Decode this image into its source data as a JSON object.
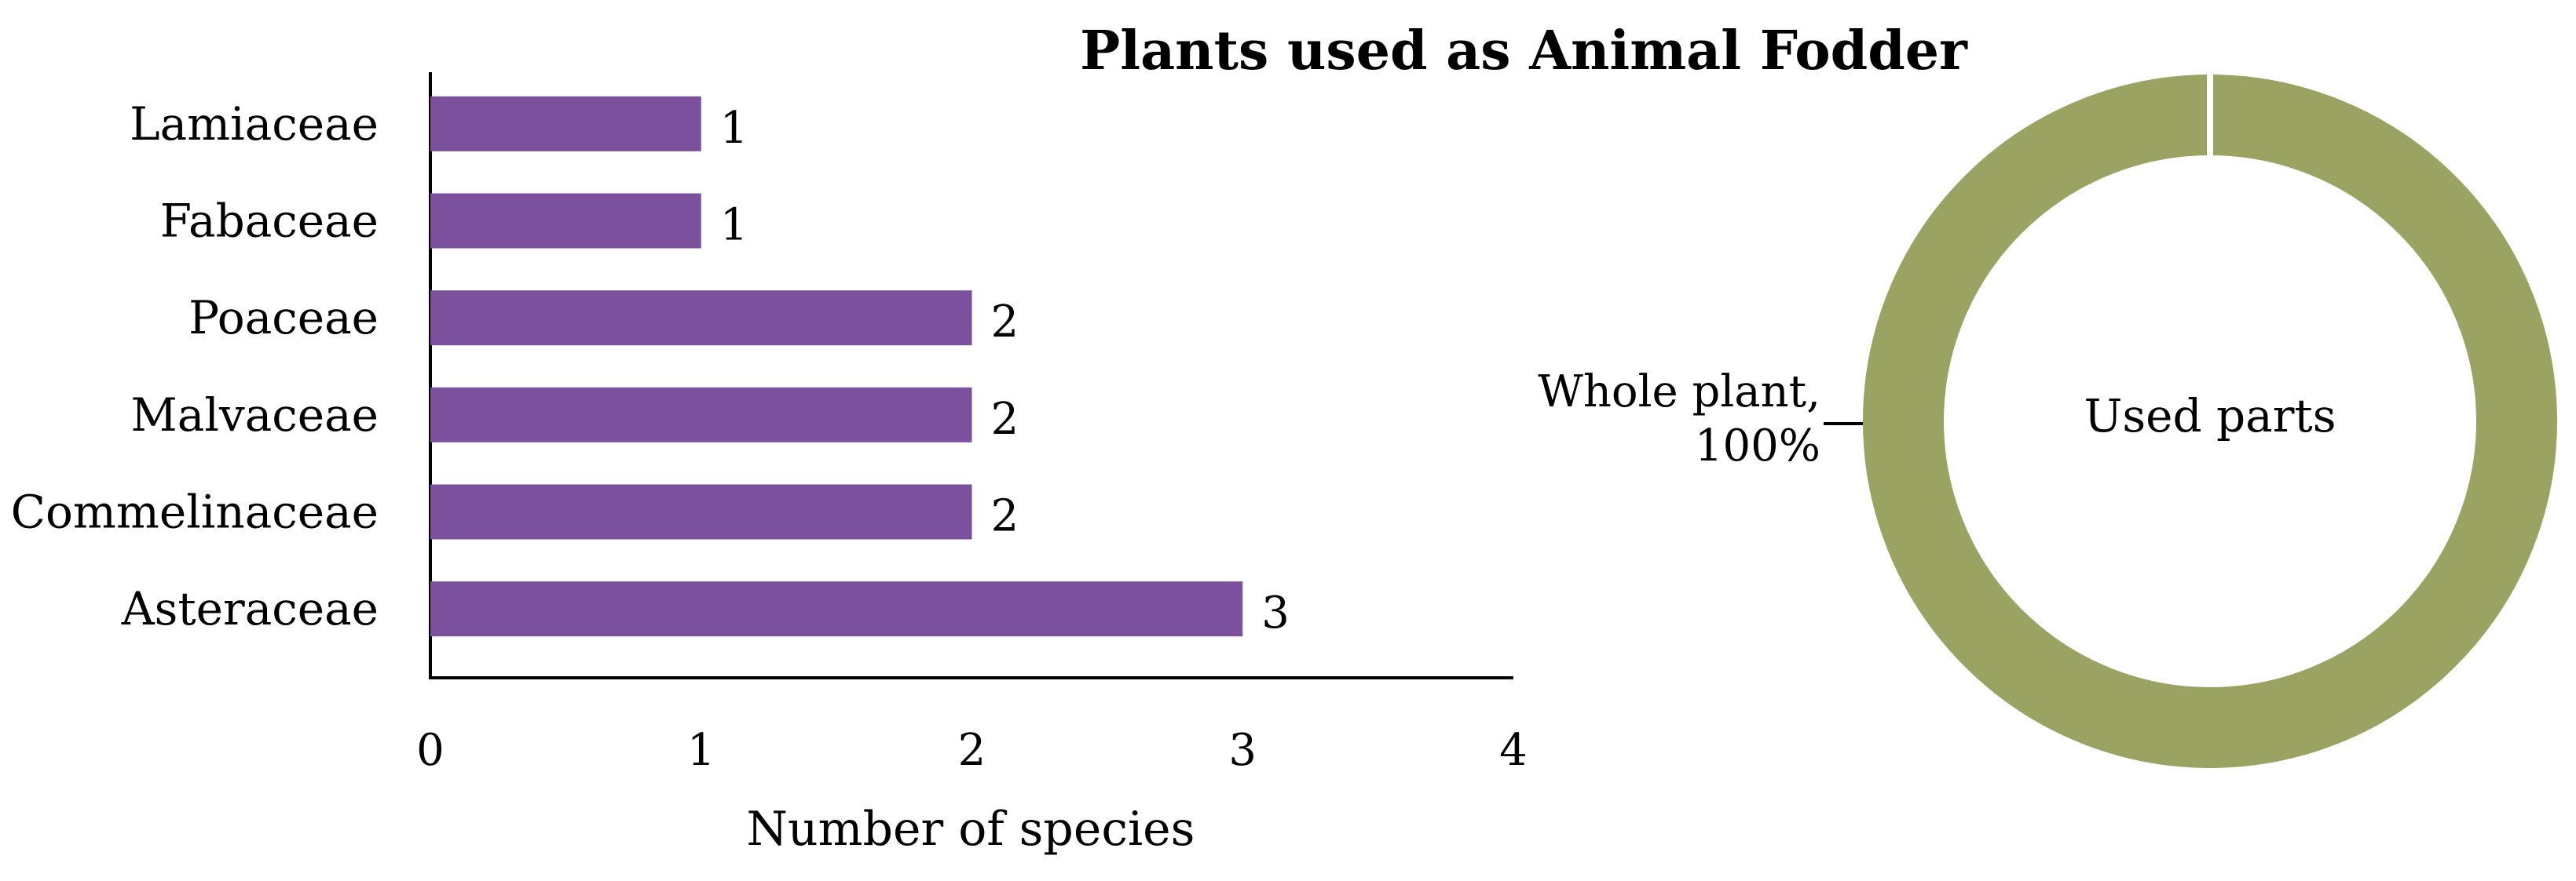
{
  "chart_data": [
    {
      "type": "bar",
      "orientation": "horizontal",
      "title": "Plants used as Animal Fodder",
      "categories": [
        "Lamiaceae",
        "Fabaceae",
        "Poaceae",
        "Malvaceae",
        "Commelinaceae",
        "Asteraceae"
      ],
      "values": [
        1,
        1,
        2,
        2,
        2,
        3
      ],
      "xlabel": "Number of species",
      "ylabel": "",
      "xlim": [
        0,
        4
      ],
      "xticks": [
        "0",
        "1",
        "2",
        "3",
        "4"
      ],
      "grid": false,
      "data_labels": true,
      "color": "#7b519d"
    },
    {
      "type": "pie",
      "variant": "donut",
      "center_label": "Used parts",
      "slices": [
        {
          "label": "Whole plant",
          "value": 100,
          "display": "100%"
        }
      ],
      "label_line1": "Whole plant,",
      "label_line2": "100%",
      "color": "#9aa361"
    }
  ]
}
